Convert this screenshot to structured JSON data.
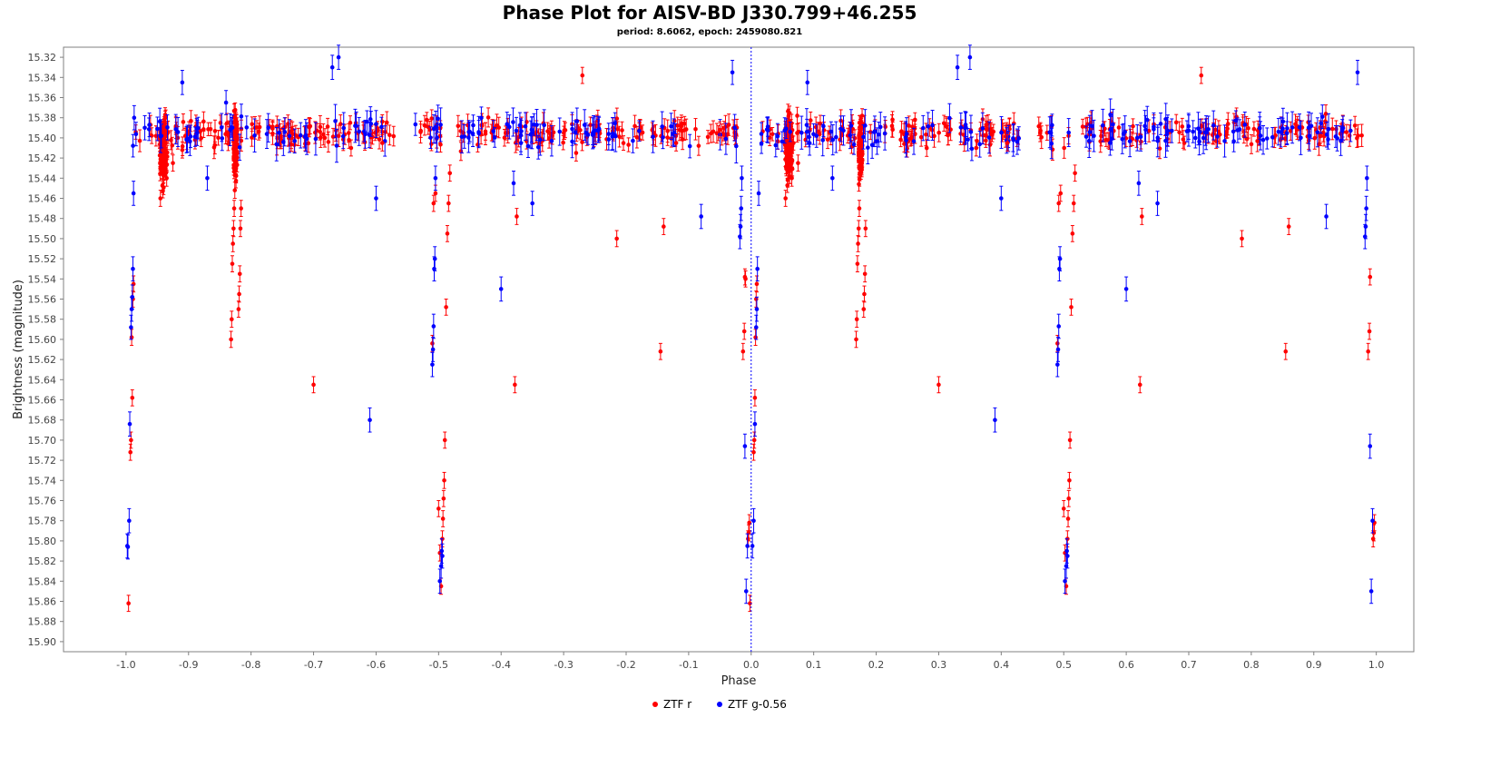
{
  "chart_data": {
    "type": "scatter",
    "title": "Phase Plot for AISV-BD J330.799+46.255",
    "subtitle": "period: 8.6062, epoch: 2459080.821",
    "xlabel": "Phase",
    "ylabel": "Brightness (magnitude)",
    "xlim": [
      -1.1,
      1.06
    ],
    "ylim": [
      15.31,
      15.91
    ],
    "y_inverted": true,
    "x_ticks": [
      -1.0,
      -0.9,
      -0.8,
      -0.7,
      -0.6,
      -0.5,
      -0.4,
      -0.3,
      -0.2,
      -0.1,
      0.0,
      0.1,
      0.2,
      0.3,
      0.4,
      0.5,
      0.6,
      0.7,
      0.8,
      0.9,
      1.0
    ],
    "y_ticks": [
      15.32,
      15.34,
      15.36,
      15.38,
      15.4,
      15.42,
      15.44,
      15.46,
      15.48,
      15.5,
      15.52,
      15.54,
      15.56,
      15.58,
      15.6,
      15.62,
      15.64,
      15.66,
      15.68,
      15.7,
      15.72,
      15.74,
      15.76,
      15.78,
      15.8,
      15.82,
      15.84,
      15.86,
      15.88,
      15.9
    ],
    "x_tick_decimals": 1,
    "y_tick_decimals": 2,
    "grid": false,
    "reference_line_x": 0.0,
    "legend_position": "bottom-center",
    "baseline_magnitude": 15.395,
    "series": [
      {
        "name": "ZTF r",
        "color": "#ff0000",
        "error": 0.008,
        "points": [
          [
            -0.996,
            15.862
          ],
          [
            -0.993,
            15.712
          ],
          [
            -0.992,
            15.7
          ],
          [
            -0.99,
            15.658
          ],
          [
            -0.991,
            15.598
          ],
          [
            -0.989,
            15.56
          ],
          [
            -0.988,
            15.545
          ],
          [
            -0.945,
            15.46
          ],
          [
            -0.935,
            15.44
          ],
          [
            -0.925,
            15.425
          ],
          [
            -0.91,
            15.412
          ],
          [
            -0.832,
            15.6
          ],
          [
            -0.831,
            15.58
          ],
          [
            -0.83,
            15.525
          ],
          [
            -0.829,
            15.505
          ],
          [
            -0.828,
            15.49
          ],
          [
            -0.827,
            15.47
          ],
          [
            -0.826,
            15.452
          ],
          [
            -0.82,
            15.57
          ],
          [
            -0.819,
            15.555
          ],
          [
            -0.818,
            15.535
          ],
          [
            -0.817,
            15.49
          ],
          [
            -0.816,
            15.47
          ],
          [
            -0.7,
            15.645
          ],
          [
            -0.64,
            15.41
          ],
          [
            -0.59,
            15.405
          ],
          [
            -0.51,
            15.604
          ],
          [
            -0.508,
            15.465
          ],
          [
            -0.505,
            15.455
          ],
          [
            -0.5,
            15.768
          ],
          [
            -0.498,
            15.812
          ],
          [
            -0.496,
            15.845
          ],
          [
            -0.494,
            15.798
          ],
          [
            -0.493,
            15.778
          ],
          [
            -0.492,
            15.758
          ],
          [
            -0.491,
            15.74
          ],
          [
            -0.49,
            15.7
          ],
          [
            -0.488,
            15.568
          ],
          [
            -0.486,
            15.495
          ],
          [
            -0.484,
            15.465
          ],
          [
            -0.482,
            15.435
          ],
          [
            -0.378,
            15.645
          ],
          [
            -0.375,
            15.478
          ],
          [
            -0.28,
            15.415
          ],
          [
            -0.27,
            15.338
          ],
          [
            -0.215,
            15.5
          ],
          [
            -0.145,
            15.612
          ],
          [
            -0.14,
            15.488
          ],
          [
            -0.12,
            15.405
          ],
          [
            -0.05,
            15.392
          ],
          [
            -0.013,
            15.612
          ],
          [
            -0.011,
            15.592
          ],
          [
            -0.01,
            15.538
          ],
          [
            -0.009,
            15.54
          ],
          [
            -0.005,
            15.798
          ],
          [
            -0.004,
            15.792
          ],
          [
            -0.003,
            15.782
          ],
          [
            -0.002,
            15.862
          ],
          [
            0.004,
            15.712
          ],
          [
            0.005,
            15.7
          ],
          [
            0.006,
            15.658
          ],
          [
            0.007,
            15.598
          ],
          [
            0.008,
            15.56
          ],
          [
            0.009,
            15.545
          ],
          [
            0.055,
            15.46
          ],
          [
            0.065,
            15.44
          ],
          [
            0.075,
            15.425
          ],
          [
            0.168,
            15.6
          ],
          [
            0.169,
            15.58
          ],
          [
            0.17,
            15.525
          ],
          [
            0.171,
            15.505
          ],
          [
            0.172,
            15.49
          ],
          [
            0.173,
            15.47
          ],
          [
            0.18,
            15.57
          ],
          [
            0.181,
            15.555
          ],
          [
            0.182,
            15.535
          ],
          [
            0.183,
            15.49
          ],
          [
            0.3,
            15.645
          ],
          [
            0.36,
            15.41
          ],
          [
            0.41,
            15.405
          ],
          [
            0.49,
            15.604
          ],
          [
            0.492,
            15.465
          ],
          [
            0.495,
            15.455
          ],
          [
            0.5,
            15.768
          ],
          [
            0.502,
            15.812
          ],
          [
            0.504,
            15.845
          ],
          [
            0.506,
            15.798
          ],
          [
            0.507,
            15.778
          ],
          [
            0.508,
            15.758
          ],
          [
            0.509,
            15.74
          ],
          [
            0.51,
            15.7
          ],
          [
            0.512,
            15.568
          ],
          [
            0.514,
            15.495
          ],
          [
            0.516,
            15.465
          ],
          [
            0.518,
            15.435
          ],
          [
            0.622,
            15.645
          ],
          [
            0.625,
            15.478
          ],
          [
            0.72,
            15.338
          ],
          [
            0.785,
            15.5
          ],
          [
            0.855,
            15.612
          ],
          [
            0.86,
            15.488
          ],
          [
            0.987,
            15.612
          ],
          [
            0.989,
            15.592
          ],
          [
            0.99,
            15.538
          ],
          [
            0.995,
            15.798
          ],
          [
            0.996,
            15.792
          ],
          [
            0.997,
            15.782
          ]
        ]
      },
      {
        "name": "ZTF g-0.56",
        "color": "#0000ff",
        "error": 0.012,
        "points": [
          [
            -0.998,
            15.805
          ],
          [
            -0.997,
            15.806
          ],
          [
            -0.995,
            15.78
          ],
          [
            -0.994,
            15.684
          ],
          [
            -0.992,
            15.588
          ],
          [
            -0.991,
            15.57
          ],
          [
            -0.99,
            15.558
          ],
          [
            -0.989,
            15.53
          ],
          [
            -0.988,
            15.455
          ],
          [
            -0.987,
            15.38
          ],
          [
            -0.97,
            15.39
          ],
          [
            -0.91,
            15.345
          ],
          [
            -0.87,
            15.44
          ],
          [
            -0.84,
            15.365
          ],
          [
            -0.67,
            15.33
          ],
          [
            -0.66,
            15.32
          ],
          [
            -0.61,
            15.68
          ],
          [
            -0.6,
            15.46
          ],
          [
            -0.51,
            15.625
          ],
          [
            -0.509,
            15.61
          ],
          [
            -0.508,
            15.587
          ],
          [
            -0.507,
            15.53
          ],
          [
            -0.506,
            15.52
          ],
          [
            -0.505,
            15.44
          ],
          [
            -0.498,
            15.84
          ],
          [
            -0.496,
            15.825
          ],
          [
            -0.495,
            15.81
          ],
          [
            -0.494,
            15.815
          ],
          [
            -0.4,
            15.55
          ],
          [
            -0.38,
            15.445
          ],
          [
            -0.35,
            15.465
          ],
          [
            -0.08,
            15.478
          ],
          [
            -0.03,
            15.335
          ],
          [
            -0.018,
            15.498
          ],
          [
            -0.017,
            15.488
          ],
          [
            -0.016,
            15.47
          ],
          [
            -0.015,
            15.44
          ],
          [
            -0.01,
            15.706
          ],
          [
            -0.008,
            15.85
          ],
          [
            -0.006,
            15.805
          ],
          [
            0.002,
            15.805
          ],
          [
            0.004,
            15.78
          ],
          [
            0.006,
            15.684
          ],
          [
            0.008,
            15.588
          ],
          [
            0.009,
            15.57
          ],
          [
            0.01,
            15.53
          ],
          [
            0.012,
            15.455
          ],
          [
            0.09,
            15.345
          ],
          [
            0.13,
            15.44
          ],
          [
            0.33,
            15.33
          ],
          [
            0.35,
            15.32
          ],
          [
            0.39,
            15.68
          ],
          [
            0.4,
            15.46
          ],
          [
            0.49,
            15.625
          ],
          [
            0.491,
            15.61
          ],
          [
            0.492,
            15.587
          ],
          [
            0.493,
            15.53
          ],
          [
            0.494,
            15.52
          ],
          [
            0.502,
            15.84
          ],
          [
            0.504,
            15.825
          ],
          [
            0.505,
            15.81
          ],
          [
            0.506,
            15.815
          ],
          [
            0.6,
            15.55
          ],
          [
            0.62,
            15.445
          ],
          [
            0.65,
            15.465
          ],
          [
            0.92,
            15.478
          ],
          [
            0.97,
            15.335
          ],
          [
            0.982,
            15.498
          ],
          [
            0.983,
            15.488
          ],
          [
            0.984,
            15.47
          ],
          [
            0.985,
            15.44
          ],
          [
            0.99,
            15.706
          ],
          [
            0.992,
            15.85
          ],
          [
            0.994,
            15.78
          ]
        ]
      }
    ]
  }
}
